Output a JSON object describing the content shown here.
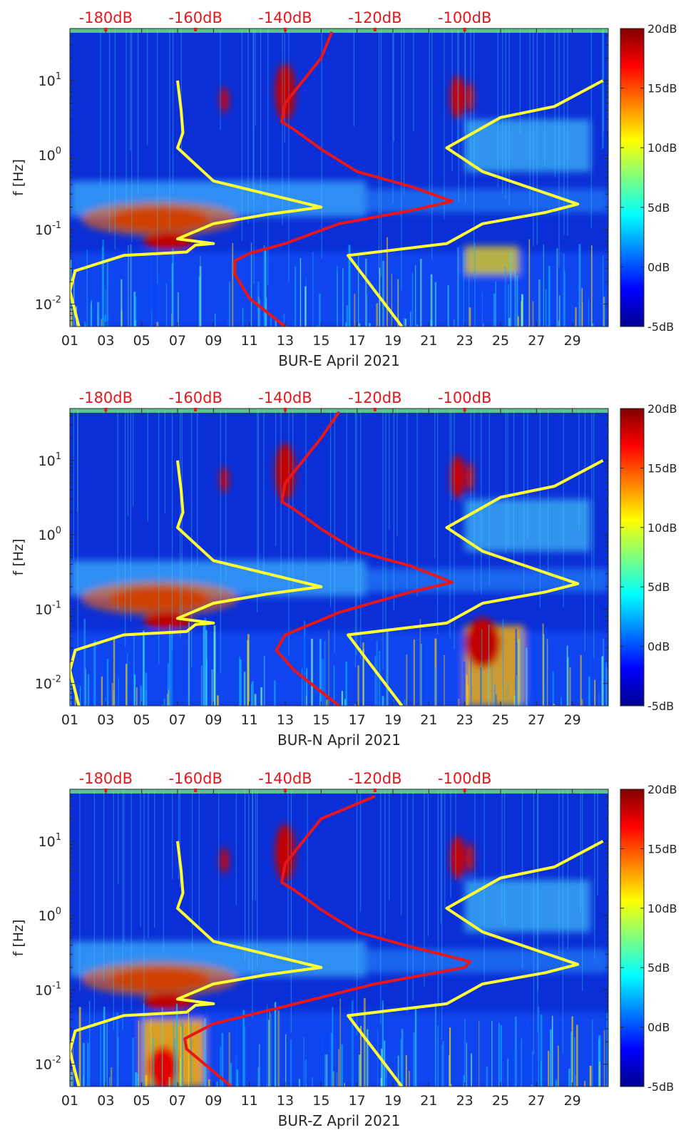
{
  "chart_data": [
    {
      "type": "heatmap",
      "xlabel": "BUR-E April 2021",
      "ylabel": "f [Hz]",
      "x_ticks": [
        "01",
        "03",
        "05",
        "07",
        "09",
        "11",
        "13",
        "15",
        "17",
        "19",
        "21",
        "23",
        "25",
        "27",
        "29"
      ],
      "y_ticks": [
        "10-2",
        "10-1",
        "100",
        "101"
      ],
      "y_scale": "log",
      "ylim": [
        0.005,
        50
      ],
      "xlim_days": [
        1,
        31
      ],
      "top_axis_labels": [
        "-180dB",
        "-160dB",
        "-140dB",
        "-120dB",
        "-100dB"
      ],
      "colorbar": {
        "labels": [
          "20dB",
          "15dB",
          "10dB",
          "5dB",
          "0dB",
          "-5dB"
        ],
        "range": [
          -5,
          20
        ]
      },
      "series": [
        {
          "color": "#ffff33",
          "points": [
            [
              1.5,
              0.005
            ],
            [
              1.0,
              0.015
            ],
            [
              1.3,
              0.028
            ],
            [
              4,
              0.045
            ],
            [
              7.5,
              0.05
            ],
            [
              8,
              0.062
            ],
            [
              9,
              0.065
            ],
            [
              7,
              0.075
            ],
            [
              9,
              0.12
            ],
            [
              12,
              0.16
            ],
            [
              15,
              0.2
            ],
            [
              9,
              0.45
            ],
            [
              7,
              1.25
            ],
            [
              7.3,
              2
            ],
            [
              7.2,
              4
            ],
            [
              7,
              10
            ]
          ]
        },
        {
          "color": "#ffff33",
          "points": [
            [
              19.5,
              0.005
            ],
            [
              16.5,
              0.045
            ],
            [
              22,
              0.065
            ],
            [
              24,
              0.12
            ],
            [
              27.5,
              0.17
            ],
            [
              29.3,
              0.22
            ],
            [
              24,
              0.6
            ],
            [
              22,
              1.25
            ],
            [
              25,
              3.2
            ],
            [
              28,
              4.5
            ],
            [
              30.7,
              10
            ]
          ]
        },
        {
          "color": "#e8161b",
          "points": [
            [
              13,
              0.005
            ],
            [
              11,
              0.012
            ],
            [
              10.2,
              0.025
            ],
            [
              10.2,
              0.038
            ],
            [
              11,
              0.048
            ],
            [
              13,
              0.065
            ],
            [
              16,
              0.12
            ],
            [
              20,
              0.18
            ],
            [
              22.3,
              0.24
            ],
            [
              20,
              0.38
            ],
            [
              17,
              0.6
            ],
            [
              15,
              1.2
            ],
            [
              13.5,
              2.2
            ],
            [
              12.8,
              2.8
            ],
            [
              13,
              5
            ],
            [
              14,
              10
            ],
            [
              15,
              20
            ],
            [
              15.6,
              45
            ]
          ]
        }
      ]
    },
    {
      "type": "heatmap",
      "xlabel": "BUR-N April 2021",
      "ylabel": "f [Hz]",
      "x_ticks": [
        "01",
        "03",
        "05",
        "07",
        "09",
        "11",
        "13",
        "15",
        "17",
        "19",
        "21",
        "23",
        "25",
        "27",
        "29"
      ],
      "y_ticks": [
        "10-2",
        "10-1",
        "100",
        "101"
      ],
      "y_scale": "log",
      "ylim": [
        0.005,
        50
      ],
      "xlim_days": [
        1,
        31
      ],
      "top_axis_labels": [
        "-180dB",
        "-160dB",
        "-140dB",
        "-120dB",
        "-100dB"
      ],
      "colorbar": {
        "labels": [
          "20dB",
          "15dB",
          "10dB",
          "5dB",
          "0dB",
          "-5dB"
        ],
        "range": [
          -5,
          20
        ]
      },
      "series": [
        {
          "color": "#ffff33",
          "points": [
            [
              1.5,
              0.005
            ],
            [
              1.0,
              0.015
            ],
            [
              1.3,
              0.028
            ],
            [
              4,
              0.045
            ],
            [
              7.5,
              0.05
            ],
            [
              8,
              0.062
            ],
            [
              9,
              0.065
            ],
            [
              7,
              0.075
            ],
            [
              9,
              0.12
            ],
            [
              12,
              0.16
            ],
            [
              15,
              0.2
            ],
            [
              9,
              0.45
            ],
            [
              7,
              1.25
            ],
            [
              7.3,
              2
            ],
            [
              7.2,
              4
            ],
            [
              7,
              10
            ]
          ]
        },
        {
          "color": "#ffff33",
          "points": [
            [
              19.5,
              0.005
            ],
            [
              16.5,
              0.045
            ],
            [
              22,
              0.065
            ],
            [
              24,
              0.12
            ],
            [
              27.5,
              0.17
            ],
            [
              29.3,
              0.22
            ],
            [
              24,
              0.6
            ],
            [
              22,
              1.25
            ],
            [
              25,
              3.2
            ],
            [
              28,
              4.5
            ],
            [
              30.7,
              10
            ]
          ]
        },
        {
          "color": "#e8161b",
          "points": [
            [
              16,
              0.005
            ],
            [
              13.5,
              0.015
            ],
            [
              12.5,
              0.028
            ],
            [
              13,
              0.045
            ],
            [
              16,
              0.09
            ],
            [
              20,
              0.17
            ],
            [
              22.3,
              0.23
            ],
            [
              20,
              0.38
            ],
            [
              17,
              0.6
            ],
            [
              15,
              1.2
            ],
            [
              13.5,
              2.2
            ],
            [
              12.8,
              2.8
            ],
            [
              13,
              5
            ],
            [
              14,
              10
            ],
            [
              15,
              20
            ],
            [
              16,
              45
            ]
          ]
        }
      ]
    },
    {
      "type": "heatmap",
      "xlabel": "BUR-Z April 2021",
      "ylabel": "f [Hz]",
      "x_ticks": [
        "01",
        "03",
        "05",
        "07",
        "09",
        "11",
        "13",
        "15",
        "17",
        "19",
        "21",
        "23",
        "25",
        "27",
        "29"
      ],
      "y_ticks": [
        "10-2",
        "10-1",
        "100",
        "101"
      ],
      "y_scale": "log",
      "ylim": [
        0.005,
        50
      ],
      "xlim_days": [
        1,
        31
      ],
      "top_axis_labels": [
        "-180dB",
        "-160dB",
        "-140dB",
        "-120dB",
        "-100dB"
      ],
      "colorbar": {
        "labels": [
          "20dB",
          "15dB",
          "10dB",
          "5dB",
          "0dB",
          "-5dB"
        ],
        "range": [
          -5,
          20
        ]
      },
      "series": [
        {
          "color": "#ffff33",
          "points": [
            [
              1.5,
              0.005
            ],
            [
              1.0,
              0.015
            ],
            [
              1.3,
              0.028
            ],
            [
              4,
              0.045
            ],
            [
              7.5,
              0.05
            ],
            [
              8,
              0.062
            ],
            [
              9,
              0.065
            ],
            [
              7,
              0.075
            ],
            [
              9,
              0.12
            ],
            [
              12,
              0.16
            ],
            [
              15,
              0.2
            ],
            [
              9,
              0.45
            ],
            [
              7,
              1.25
            ],
            [
              7.3,
              2
            ],
            [
              7.2,
              4
            ],
            [
              7,
              10
            ]
          ]
        },
        {
          "color": "#ffff33",
          "points": [
            [
              19.5,
              0.005
            ],
            [
              16.5,
              0.045
            ],
            [
              22,
              0.065
            ],
            [
              24,
              0.12
            ],
            [
              27.5,
              0.17
            ],
            [
              29.3,
              0.22
            ],
            [
              24,
              0.6
            ],
            [
              22,
              1.25
            ],
            [
              25,
              3.2
            ],
            [
              28,
              4.5
            ],
            [
              30.7,
              10
            ]
          ]
        },
        {
          "color": "#e8161b",
          "points": [
            [
              10,
              0.005
            ],
            [
              7.5,
              0.016
            ],
            [
              7.4,
              0.022
            ],
            [
              9,
              0.035
            ],
            [
              13,
              0.06
            ],
            [
              18,
              0.12
            ],
            [
              23,
              0.2
            ],
            [
              23.3,
              0.24
            ],
            [
              20,
              0.38
            ],
            [
              17,
              0.6
            ],
            [
              15,
              1.2
            ],
            [
              13.5,
              2.2
            ],
            [
              12.8,
              2.8
            ],
            [
              13,
              5
            ],
            [
              14,
              10
            ],
            [
              15,
              20
            ],
            [
              18,
              40
            ]
          ]
        }
      ]
    }
  ]
}
